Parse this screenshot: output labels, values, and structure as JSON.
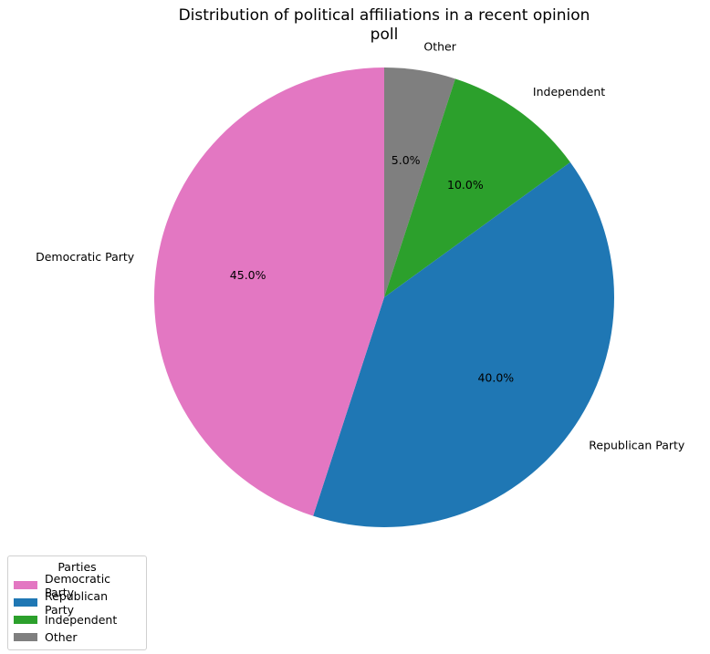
{
  "chart_data": {
    "type": "pie",
    "title": "Distribution of political affiliations in a recent opinion poll",
    "title_lines": [
      "Distribution of political affiliations in a recent opinion",
      "poll"
    ],
    "start_angle_deg": 90,
    "direction": "clockwise",
    "slices": [
      {
        "label": "Other",
        "value": 5.0,
        "pct_label": "5.0%",
        "color": "#7f7f7f"
      },
      {
        "label": "Independent",
        "value": 10.0,
        "pct_label": "10.0%",
        "color": "#2ca02c"
      },
      {
        "label": "Republican Party",
        "value": 40.0,
        "pct_label": "40.0%",
        "color": "#1f77b4"
      },
      {
        "label": "Democratic Party",
        "value": 45.0,
        "pct_label": "45.0%",
        "color": "#e377c2"
      }
    ],
    "legend": {
      "title": "Parties",
      "placement": "lower-left",
      "entries": [
        {
          "label": "Democratic Party",
          "color": "#e377c2"
        },
        {
          "label": "Republican Party",
          "color": "#1f77b4"
        },
        {
          "label": "Independent",
          "color": "#2ca02c"
        },
        {
          "label": "Other",
          "color": "#7f7f7f"
        }
      ]
    }
  }
}
